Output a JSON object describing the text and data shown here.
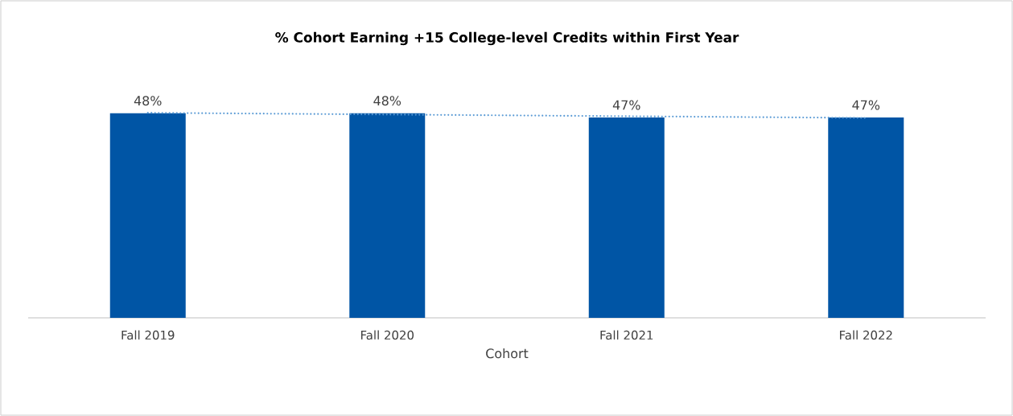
{
  "chart_data": {
    "type": "bar",
    "title": "% Cohort Earning +15 College-level Credits within First Year",
    "xlabel": "Cohort",
    "categories": [
      "Fall 2019",
      "Fall 2020",
      "Fall 2021",
      "Fall 2022"
    ],
    "series": [
      {
        "color": "#0055a5",
        "values": [
          48,
          48,
          47,
          47
        ],
        "value_labels": [
          "48%",
          "48%",
          "47%",
          "47%"
        ]
      },
      {
        "type": "line",
        "color": "#5b9bd5",
        "line_style": "dotted",
        "values": [
          48.1,
          47.7,
          47.3,
          46.9
        ]
      }
    ]
  }
}
